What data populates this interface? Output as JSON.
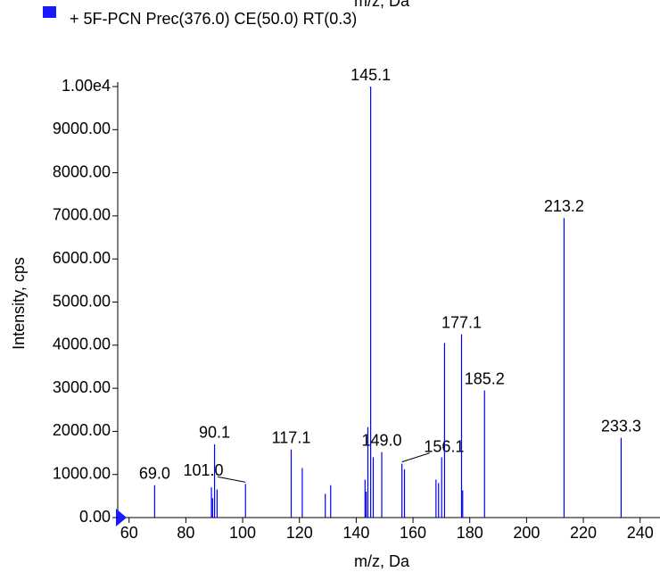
{
  "chart_data": {
    "type": "stick",
    "top_label": "m/z, Da",
    "xlabel": "m/z, Da",
    "ylabel": "Intensity, cps",
    "series": [
      {
        "name": "+ 5F-PCN Prec(376.0) CE(50.0) RT(0.3)",
        "color": "#0000ff",
        "x": [
          69.0,
          89.0,
          89.4,
          90.1,
          91.0,
          101.0,
          117.1,
          121.0,
          129.1,
          131.0,
          143.1,
          143.5,
          144.1,
          145.1,
          146.0,
          149.0,
          156.1,
          157.0,
          168.1,
          169.0,
          170.1,
          171.1,
          177.1,
          177.5,
          185.2,
          213.2,
          233.3
        ],
        "values": [
          750,
          700,
          450,
          1700,
          650,
          780,
          1580,
          1150,
          550,
          750,
          880,
          600,
          2100,
          10000,
          1400,
          1520,
          1250,
          1120,
          880,
          800,
          1400,
          4050,
          4250,
          630,
          2950,
          6950,
          1850
        ],
        "peak_labels": [
          "69.0",
          null,
          null,
          "90.1",
          null,
          "101.0",
          "117.1",
          null,
          null,
          null,
          null,
          null,
          null,
          "145.1",
          null,
          "149.0",
          "156.1",
          null,
          null,
          null,
          null,
          null,
          "177.1",
          null,
          "185.2",
          "213.2",
          "233.3"
        ]
      }
    ],
    "xlim": [
      56,
      247
    ],
    "ylim": [
      0,
      10000
    ],
    "xticks": [
      60,
      80,
      100,
      120,
      140,
      160,
      180,
      200,
      220,
      240
    ],
    "yticks": [
      {
        "value": 0,
        "label": "0.00"
      },
      {
        "value": 1000,
        "label": "1000.00"
      },
      {
        "value": 2000,
        "label": "2000.00"
      },
      {
        "value": 3000,
        "label": "3000.00"
      },
      {
        "value": 4000,
        "label": "4000.00"
      },
      {
        "value": 5000,
        "label": "5000.00"
      },
      {
        "value": 6000,
        "label": "6000.00"
      },
      {
        "value": 7000,
        "label": "7000.00"
      },
      {
        "value": 8000,
        "label": "8000.00"
      },
      {
        "value": 9000,
        "label": "9000.00"
      },
      {
        "value": 10000,
        "label": "1.00e4"
      }
    ]
  }
}
